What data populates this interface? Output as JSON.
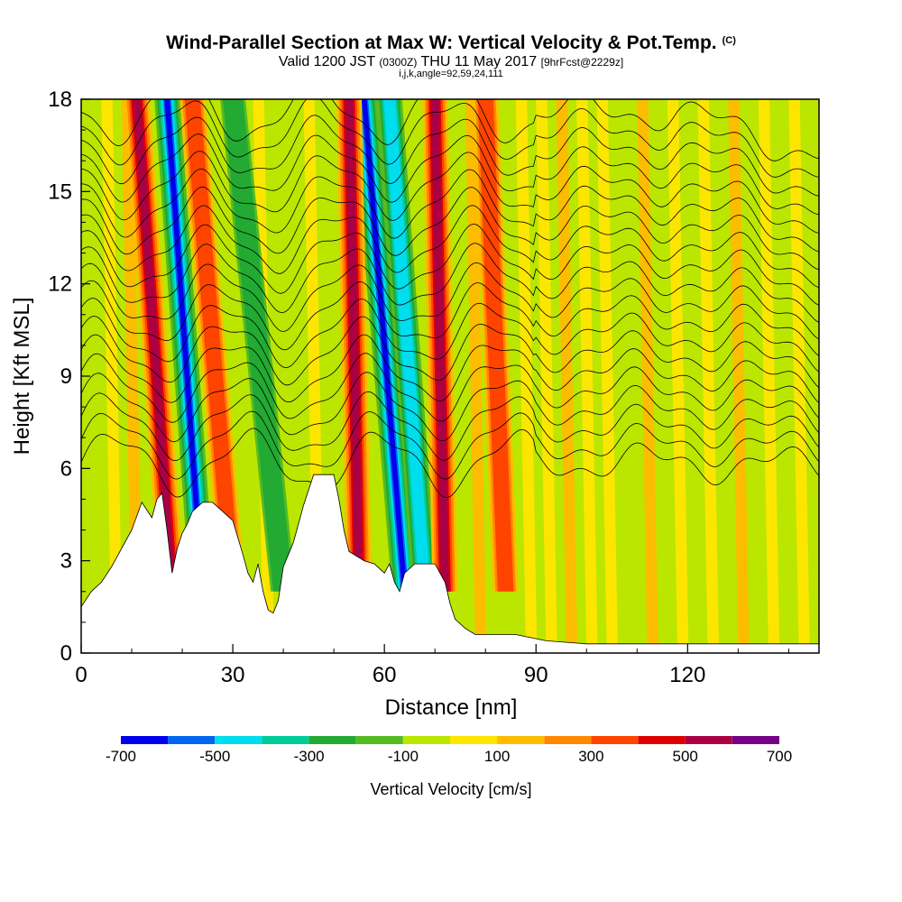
{
  "header": {
    "title": "Wind-Parallel Section at Max W: Vertical Velocity & Pot.Temp.",
    "copyright": "(C)",
    "valid_prefix": "Valid 1200 JST",
    "valid_utc": "(0300Z)",
    "valid_date": "THU 11 May 2017",
    "forecast": "[9hrFcst@2229z]",
    "indices": "i,j,k,angle=92,59,24,111"
  },
  "chart_data": {
    "type": "heatmap",
    "xlabel": "Distance [nm]",
    "ylabel": "Height [Kft MSL]",
    "xlim": [
      0,
      146
    ],
    "ylim": [
      0,
      18
    ],
    "x_ticks": [
      0,
      30,
      60,
      90,
      120
    ],
    "y_ticks": [
      0,
      3,
      6,
      9,
      12,
      15,
      18
    ],
    "colorbar": {
      "label": "Vertical Velocity [cm/s]",
      "bounds": [
        -700,
        -600,
        -500,
        -400,
        -300,
        -200,
        -100,
        0,
        100,
        200,
        300,
        400,
        500,
        600,
        700
      ],
      "tick_labels": [
        "-700",
        "-500",
        "-300",
        "-100",
        "100",
        "300",
        "500",
        "700"
      ],
      "colors": [
        "#0000ee",
        "#0066ee",
        "#00ddee",
        "#00cc99",
        "#22aa33",
        "#55bb22",
        "#bbe600",
        "#ffe600",
        "#ffbb00",
        "#ff8800",
        "#ff4400",
        "#dd0000",
        "#aa0044",
        "#770088"
      ]
    },
    "terrain_kft": [
      [
        0,
        1.5
      ],
      [
        2,
        2.0
      ],
      [
        4,
        2.3
      ],
      [
        6,
        2.8
      ],
      [
        8,
        3.4
      ],
      [
        10,
        4.0
      ],
      [
        12,
        4.9
      ],
      [
        14,
        4.4
      ],
      [
        15,
        5.0
      ],
      [
        16,
        5.2
      ],
      [
        17,
        4.0
      ],
      [
        18,
        2.6
      ],
      [
        19,
        3.4
      ],
      [
        20,
        3.9
      ],
      [
        21,
        4.2
      ],
      [
        22,
        4.6
      ],
      [
        24,
        4.9
      ],
      [
        26,
        4.9
      ],
      [
        28,
        4.6
      ],
      [
        30,
        4.3
      ],
      [
        32,
        3.2
      ],
      [
        33,
        2.6
      ],
      [
        34,
        2.3
      ],
      [
        35,
        2.9
      ],
      [
        36,
        2.0
      ],
      [
        37,
        1.4
      ],
      [
        38,
        1.3
      ],
      [
        39,
        1.7
      ],
      [
        40,
        2.8
      ],
      [
        42,
        3.6
      ],
      [
        44,
        4.8
      ],
      [
        46,
        5.8
      ],
      [
        50,
        5.8
      ],
      [
        51,
        5.0
      ],
      [
        52,
        4.0
      ],
      [
        53,
        3.3
      ],
      [
        56,
        3.0
      ],
      [
        58,
        2.9
      ],
      [
        60,
        2.6
      ],
      [
        61,
        2.9
      ],
      [
        62,
        2.3
      ],
      [
        63,
        2.0
      ],
      [
        64,
        2.6
      ],
      [
        66,
        2.9
      ],
      [
        70,
        2.9
      ],
      [
        72,
        2.3
      ],
      [
        73,
        1.6
      ],
      [
        74,
        1.1
      ],
      [
        76,
        0.8
      ],
      [
        78,
        0.6
      ],
      [
        80,
        0.6
      ],
      [
        86,
        0.6
      ],
      [
        92,
        0.4
      ],
      [
        100,
        0.3
      ],
      [
        146,
        0.3
      ]
    ],
    "updraft_bands": [
      {
        "x0": 18,
        "x1": 11,
        "peak_cm_s": 550,
        "y_top": 18
      },
      {
        "x0": 30,
        "x1": 22,
        "peak_cm_s": 300,
        "y_top": 18
      },
      {
        "x0": 55,
        "x1": 53,
        "peak_cm_s": 550,
        "y_top": 18
      },
      {
        "x0": 72,
        "x1": 70,
        "peak_cm_s": 550,
        "y_top": 18
      },
      {
        "x0": 84,
        "x1": 80,
        "peak_cm_s": 300,
        "y_top": 18
      }
    ],
    "downdraft_bands": [
      {
        "x0": 24,
        "x1": 17,
        "peak_cm_s": -650,
        "y_top": 18
      },
      {
        "x0": 64,
        "x1": 56,
        "peak_cm_s": -600,
        "y_top": 18
      },
      {
        "x0": 68,
        "x1": 61,
        "peak_cm_s": -450,
        "y_top": 18
      },
      {
        "x0": 40,
        "x1": 30,
        "peak_cm_s": -250,
        "y_top": 18
      }
    ],
    "theta_contours_kft": [
      6.2,
      6.8,
      7.4,
      8.0,
      8.6,
      9.2,
      9.8,
      10.4,
      11.0,
      11.6,
      12.2,
      12.8,
      13.4,
      14.0,
      14.6,
      15.2,
      15.8,
      16.4,
      17.0,
      17.6
    ]
  }
}
